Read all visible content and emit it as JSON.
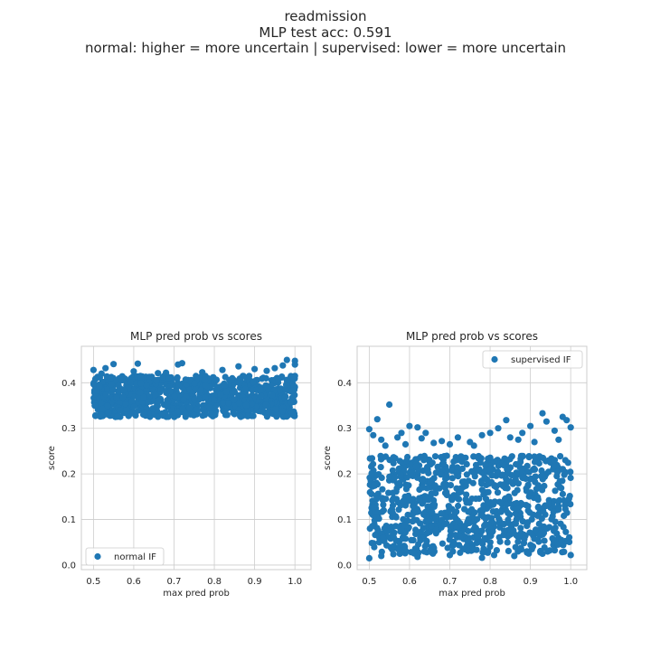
{
  "figure": {
    "title_lines": [
      "readmission",
      "MLP test acc: 0.591",
      "normal: higher = more uncertain | supervised: lower = more uncertain"
    ],
    "colors": {
      "points": "#1f77b4",
      "grid": "#cccccc",
      "spine": "#cccccc",
      "text": "#262626"
    }
  },
  "chart_data": [
    {
      "type": "scatter",
      "title": "MLP pred prob vs scores",
      "xlabel": "max pred prob",
      "ylabel": "score",
      "xlim": [
        0.47,
        1.04
      ],
      "ylim": [
        -0.01,
        0.48
      ],
      "xticks": [
        0.5,
        0.6,
        0.7,
        0.8,
        0.9,
        1.0
      ],
      "xtick_labels": [
        "0.5",
        "0.6",
        "0.7",
        "0.8",
        "0.9",
        "1.0"
      ],
      "yticks": [
        0.0,
        0.1,
        0.2,
        0.3,
        0.4
      ],
      "ytick_labels": [
        "0.0",
        "0.1",
        "0.2",
        "0.3",
        "0.4"
      ],
      "grid": true,
      "legend": {
        "label": "normal IF",
        "placement": "lower-left"
      },
      "series": [
        {
          "name": "normal IF",
          "band": {
            "x": [
              0.5,
              1.0
            ],
            "y": [
              0.325,
              0.415
            ]
          },
          "points": [
            [
              0.5,
              0.428
            ],
            [
              0.53,
              0.432
            ],
            [
              0.55,
              0.441
            ],
            [
              0.61,
              0.442
            ],
            [
              0.66,
              0.421
            ],
            [
              0.71,
              0.44
            ],
            [
              0.72,
              0.443
            ],
            [
              0.77,
              0.423
            ],
            [
              0.86,
              0.436
            ],
            [
              0.9,
              0.43
            ],
            [
              0.93,
              0.426
            ],
            [
              0.97,
              0.438
            ],
            [
              0.98,
              0.45
            ],
            [
              1.0,
              0.448
            ],
            [
              1.0,
              0.44
            ],
            [
              0.6,
              0.425
            ],
            [
              0.82,
              0.428
            ],
            [
              0.68,
              0.422
            ],
            [
              0.95,
              0.432
            ],
            [
              0.52,
              0.42
            ]
          ]
        }
      ]
    },
    {
      "type": "scatter",
      "title": "MLP pred prob vs scores",
      "xlabel": "max pred prob",
      "ylabel": "score",
      "xlim": [
        0.47,
        1.04
      ],
      "ylim": [
        -0.01,
        0.48
      ],
      "xticks": [
        0.5,
        0.6,
        0.7,
        0.8,
        0.9,
        1.0
      ],
      "xtick_labels": [
        "0.5",
        "0.6",
        "0.7",
        "0.8",
        "0.9",
        "1.0"
      ],
      "yticks": [
        0.0,
        0.1,
        0.2,
        0.3,
        0.4
      ],
      "ytick_labels": [
        "0.0",
        "0.1",
        "0.2",
        "0.3",
        "0.4"
      ],
      "grid": true,
      "legend": {
        "label": "supervised IF",
        "placement": "upper-right"
      },
      "series": [
        {
          "name": "supervised IF",
          "band": {
            "x": [
              0.5,
              1.0
            ],
            "y": [
              0.025,
              0.24
            ]
          },
          "points": [
            [
              0.55,
              0.352
            ],
            [
              0.5,
              0.298
            ],
            [
              0.52,
              0.32
            ],
            [
              0.51,
              0.285
            ],
            [
              0.53,
              0.275
            ],
            [
              0.57,
              0.28
            ],
            [
              0.58,
              0.29
            ],
            [
              0.6,
              0.305
            ],
            [
              0.62,
              0.302
            ],
            [
              0.64,
              0.29
            ],
            [
              0.63,
              0.278
            ],
            [
              0.66,
              0.268
            ],
            [
              0.68,
              0.272
            ],
            [
              0.7,
              0.265
            ],
            [
              0.72,
              0.28
            ],
            [
              0.75,
              0.27
            ],
            [
              0.78,
              0.285
            ],
            [
              0.8,
              0.29
            ],
            [
              0.82,
              0.3
            ],
            [
              0.84,
              0.318
            ],
            [
              0.85,
              0.28
            ],
            [
              0.88,
              0.29
            ],
            [
              0.9,
              0.305
            ],
            [
              0.93,
              0.333
            ],
            [
              0.94,
              0.315
            ],
            [
              0.96,
              0.295
            ],
            [
              0.98,
              0.325
            ],
            [
              0.99,
              0.318
            ],
            [
              1.0,
              0.302
            ],
            [
              0.97,
              0.275
            ],
            [
              0.91,
              0.27
            ],
            [
              0.87,
              0.275
            ],
            [
              0.76,
              0.262
            ],
            [
              0.59,
              0.265
            ],
            [
              0.54,
              0.262
            ],
            [
              0.5,
              0.015
            ],
            [
              0.53,
              0.02
            ],
            [
              0.62,
              0.018
            ],
            [
              0.7,
              0.022
            ],
            [
              0.78,
              0.016
            ],
            [
              0.86,
              0.02
            ],
            [
              0.93,
              0.025
            ],
            [
              1.0,
              0.022
            ],
            [
              0.56,
              0.024
            ],
            [
              0.81,
              0.022
            ]
          ]
        }
      ]
    }
  ]
}
